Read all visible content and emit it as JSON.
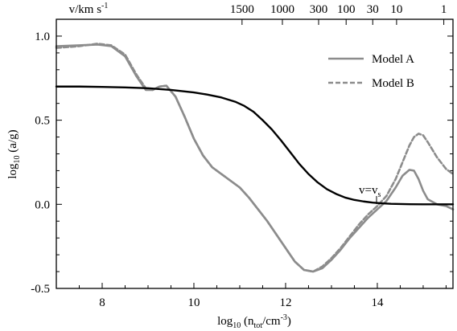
{
  "chart_data": {
    "type": "line",
    "xlabel": "log10 (ntot/cm-3)",
    "ylabel": "log10 (a/g)",
    "top_axis_label": "v/km s-1",
    "xlim": [
      7.0,
      15.65
    ],
    "ylim": [
      -0.5,
      1.1
    ],
    "x_ticks": [
      8,
      10,
      12,
      14
    ],
    "y_ticks": [
      -0.5,
      0.0,
      0.5,
      1.0
    ],
    "y_tick_labels": [
      "-0.5",
      "0.0",
      "0.5",
      "1.0"
    ],
    "top_ticks": [
      {
        "label": "1500",
        "x": 11.05
      },
      {
        "label": "1000",
        "x": 11.93
      },
      {
        "label": "300",
        "x": 12.72
      },
      {
        "label": "100",
        "x": 13.32
      },
      {
        "label": "30",
        "x": 13.9
      },
      {
        "label": "10",
        "x": 14.42
      },
      {
        "label": "1",
        "x": 15.45
      }
    ],
    "annotation": {
      "text": "v=vs",
      "x": 14.1,
      "y": 0.02
    },
    "legend": {
      "placement": "top-right"
    },
    "series": [
      {
        "name": "Model A",
        "color": "#8c8c8c",
        "style": "solid",
        "x": [
          7.0,
          7.5,
          7.9,
          8.2,
          8.5,
          8.75,
          8.95,
          9.1,
          9.25,
          9.4,
          9.6,
          9.8,
          10.0,
          10.2,
          10.4,
          10.6,
          10.8,
          11.0,
          11.2,
          11.4,
          11.6,
          11.8,
          12.0,
          12.2,
          12.4,
          12.6,
          12.8,
          13.0,
          13.2,
          13.4,
          13.6,
          13.8,
          14.0,
          14.2,
          14.4,
          14.55,
          14.7,
          14.8,
          14.9,
          15.0,
          15.1,
          15.3,
          15.5,
          15.65
        ],
        "y": [
          0.94,
          0.945,
          0.95,
          0.94,
          0.88,
          0.76,
          0.68,
          0.68,
          0.7,
          0.705,
          0.64,
          0.52,
          0.39,
          0.29,
          0.22,
          0.18,
          0.14,
          0.1,
          0.04,
          -0.03,
          -0.1,
          -0.18,
          -0.26,
          -0.34,
          -0.39,
          -0.4,
          -0.38,
          -0.33,
          -0.27,
          -0.2,
          -0.14,
          -0.08,
          -0.03,
          0.02,
          0.1,
          0.17,
          0.205,
          0.2,
          0.15,
          0.08,
          0.03,
          0.0,
          -0.01,
          -0.03
        ]
      },
      {
        "name": "Model B",
        "color": "#8c8c8c",
        "style": "dashed",
        "x": [
          7.0,
          7.5,
          7.9,
          8.2,
          8.5,
          8.75,
          8.95,
          9.1,
          9.25,
          9.4,
          9.6,
          9.8,
          10.0,
          10.2,
          10.4,
          10.6,
          10.8,
          11.0,
          11.2,
          11.4,
          11.6,
          11.8,
          12.0,
          12.2,
          12.4,
          12.6,
          12.8,
          13.0,
          13.2,
          13.4,
          13.6,
          13.8,
          14.0,
          14.2,
          14.4,
          14.55,
          14.7,
          14.8,
          14.9,
          15.0,
          15.1,
          15.3,
          15.5,
          15.65
        ],
        "y": [
          0.93,
          0.94,
          0.955,
          0.945,
          0.89,
          0.77,
          0.69,
          0.68,
          0.7,
          0.705,
          0.64,
          0.52,
          0.39,
          0.29,
          0.22,
          0.18,
          0.14,
          0.1,
          0.04,
          -0.03,
          -0.1,
          -0.18,
          -0.26,
          -0.34,
          -0.39,
          -0.4,
          -0.37,
          -0.32,
          -0.26,
          -0.19,
          -0.12,
          -0.06,
          -0.01,
          0.05,
          0.15,
          0.25,
          0.35,
          0.4,
          0.42,
          0.41,
          0.37,
          0.28,
          0.21,
          0.18
        ]
      },
      {
        "name": "",
        "color": "#000000",
        "style": "solid",
        "x": [
          7.0,
          7.5,
          8.0,
          8.5,
          9.0,
          9.5,
          10.0,
          10.3,
          10.6,
          10.9,
          11.1,
          11.3,
          11.5,
          11.7,
          11.9,
          12.1,
          12.3,
          12.5,
          12.7,
          12.9,
          13.1,
          13.3,
          13.5,
          13.7,
          13.9,
          14.1,
          14.3,
          14.6,
          15.0,
          15.3,
          15.65
        ],
        "y": [
          0.7,
          0.7,
          0.698,
          0.695,
          0.69,
          0.68,
          0.665,
          0.652,
          0.635,
          0.61,
          0.585,
          0.55,
          0.5,
          0.445,
          0.38,
          0.31,
          0.24,
          0.18,
          0.13,
          0.09,
          0.062,
          0.04,
          0.026,
          0.017,
          0.01,
          0.006,
          0.003,
          0.001,
          0.0,
          0.0,
          0.0
        ]
      }
    ]
  }
}
